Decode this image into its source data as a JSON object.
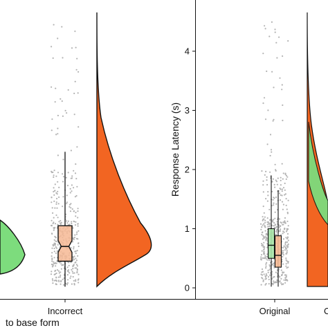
{
  "chart_data": [
    {
      "type": "raincloud",
      "panel": "left",
      "xlabel": "to base form",
      "ylabel": "",
      "categories": [
        "Incorrect"
      ],
      "series": [
        {
          "category": "Incorrect",
          "box": {
            "median": 0.7,
            "q1": 0.45,
            "q3": 1.05,
            "notch_low": 0.6,
            "notch_high": 0.8,
            "whisker_low": 0.02,
            "whisker_high": 2.3
          },
          "fill": "#f6b994",
          "violin_color": "#f26522",
          "violin_peak": 0.7,
          "violin_max": 4.85
        }
      ],
      "colors": {
        "green": "#7ddc7d",
        "orange": "#f26522",
        "points": "#b3b3b3"
      }
    },
    {
      "type": "raincloud",
      "panel": "right",
      "ylabel": "Response Latency (s)",
      "xlabel": "",
      "ylim": [
        0,
        4.8
      ],
      "yticks": [
        "0",
        "1",
        "2",
        "3",
        "4"
      ],
      "categories": [
        "Original"
      ],
      "series": [
        {
          "category": "Original",
          "box": {
            "median": 0.72,
            "q1": 0.5,
            "q3": 1.0,
            "whisker_low": 0.02,
            "whisker_high": 1.9
          },
          "fill": "#a8e6a8",
          "violin_color": "#7ddc7d"
        },
        {
          "category": "Original",
          "box": {
            "median": 0.55,
            "q1": 0.35,
            "q3": 0.88,
            "whisker_low": 0.02,
            "whisker_high": 1.65
          },
          "fill": "#f6b994",
          "violin_color": "#f26522"
        }
      ],
      "colors": {
        "green": "#7ddc7d",
        "orange": "#f26522",
        "points": "#b3b3b3"
      }
    }
  ]
}
